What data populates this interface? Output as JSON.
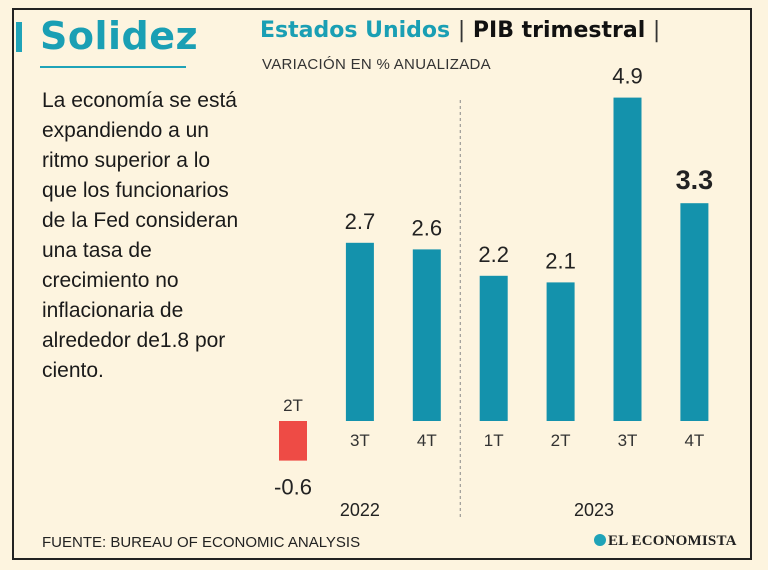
{
  "panel": {
    "title": "Solidez",
    "description": "La economía se está expandiendo a un ritmo superior a lo que los funcionarios de la Fed consideran una tasa de crecimiento no inflacionaria de alrededor de1.8 por ciento."
  },
  "header": {
    "country": "Estados Unidos",
    "separator": "|",
    "metric": "PIB trimestral",
    "subtitle": "VARIACIÓN EN % ANUALIZADA"
  },
  "footer": {
    "source": "FUENTE: BUREAU OF ECONOMIC ANALYSIS",
    "brand": "EL ECONOMISTA"
  },
  "colors": {
    "positive": "#1492ac",
    "negative": "#ee4b45",
    "accent": "#1a9fb4"
  },
  "chart_data": {
    "type": "bar",
    "categories": [
      "2T",
      "3T",
      "4T",
      "1T",
      "2T",
      "3T",
      "4T"
    ],
    "years": [
      {
        "label": "2022",
        "categories": [
          "2T",
          "3T",
          "4T"
        ]
      },
      {
        "label": "2023",
        "categories": [
          "1T",
          "2T",
          "3T",
          "4T"
        ]
      }
    ],
    "values": [
      -0.6,
      2.7,
      2.6,
      2.2,
      2.1,
      4.9,
      3.3
    ],
    "value_labels": [
      "-0.6",
      "2.7",
      "2.6",
      "2.2",
      "2.1",
      "4.9",
      "3.3"
    ],
    "highlight_index": 6,
    "title": "Estados Unidos | PIB trimestral |",
    "subtitle": "VARIACIÓN EN % ANUALIZADA",
    "ylim": [
      -0.6,
      4.9
    ],
    "grid": false,
    "year_divider": true
  }
}
